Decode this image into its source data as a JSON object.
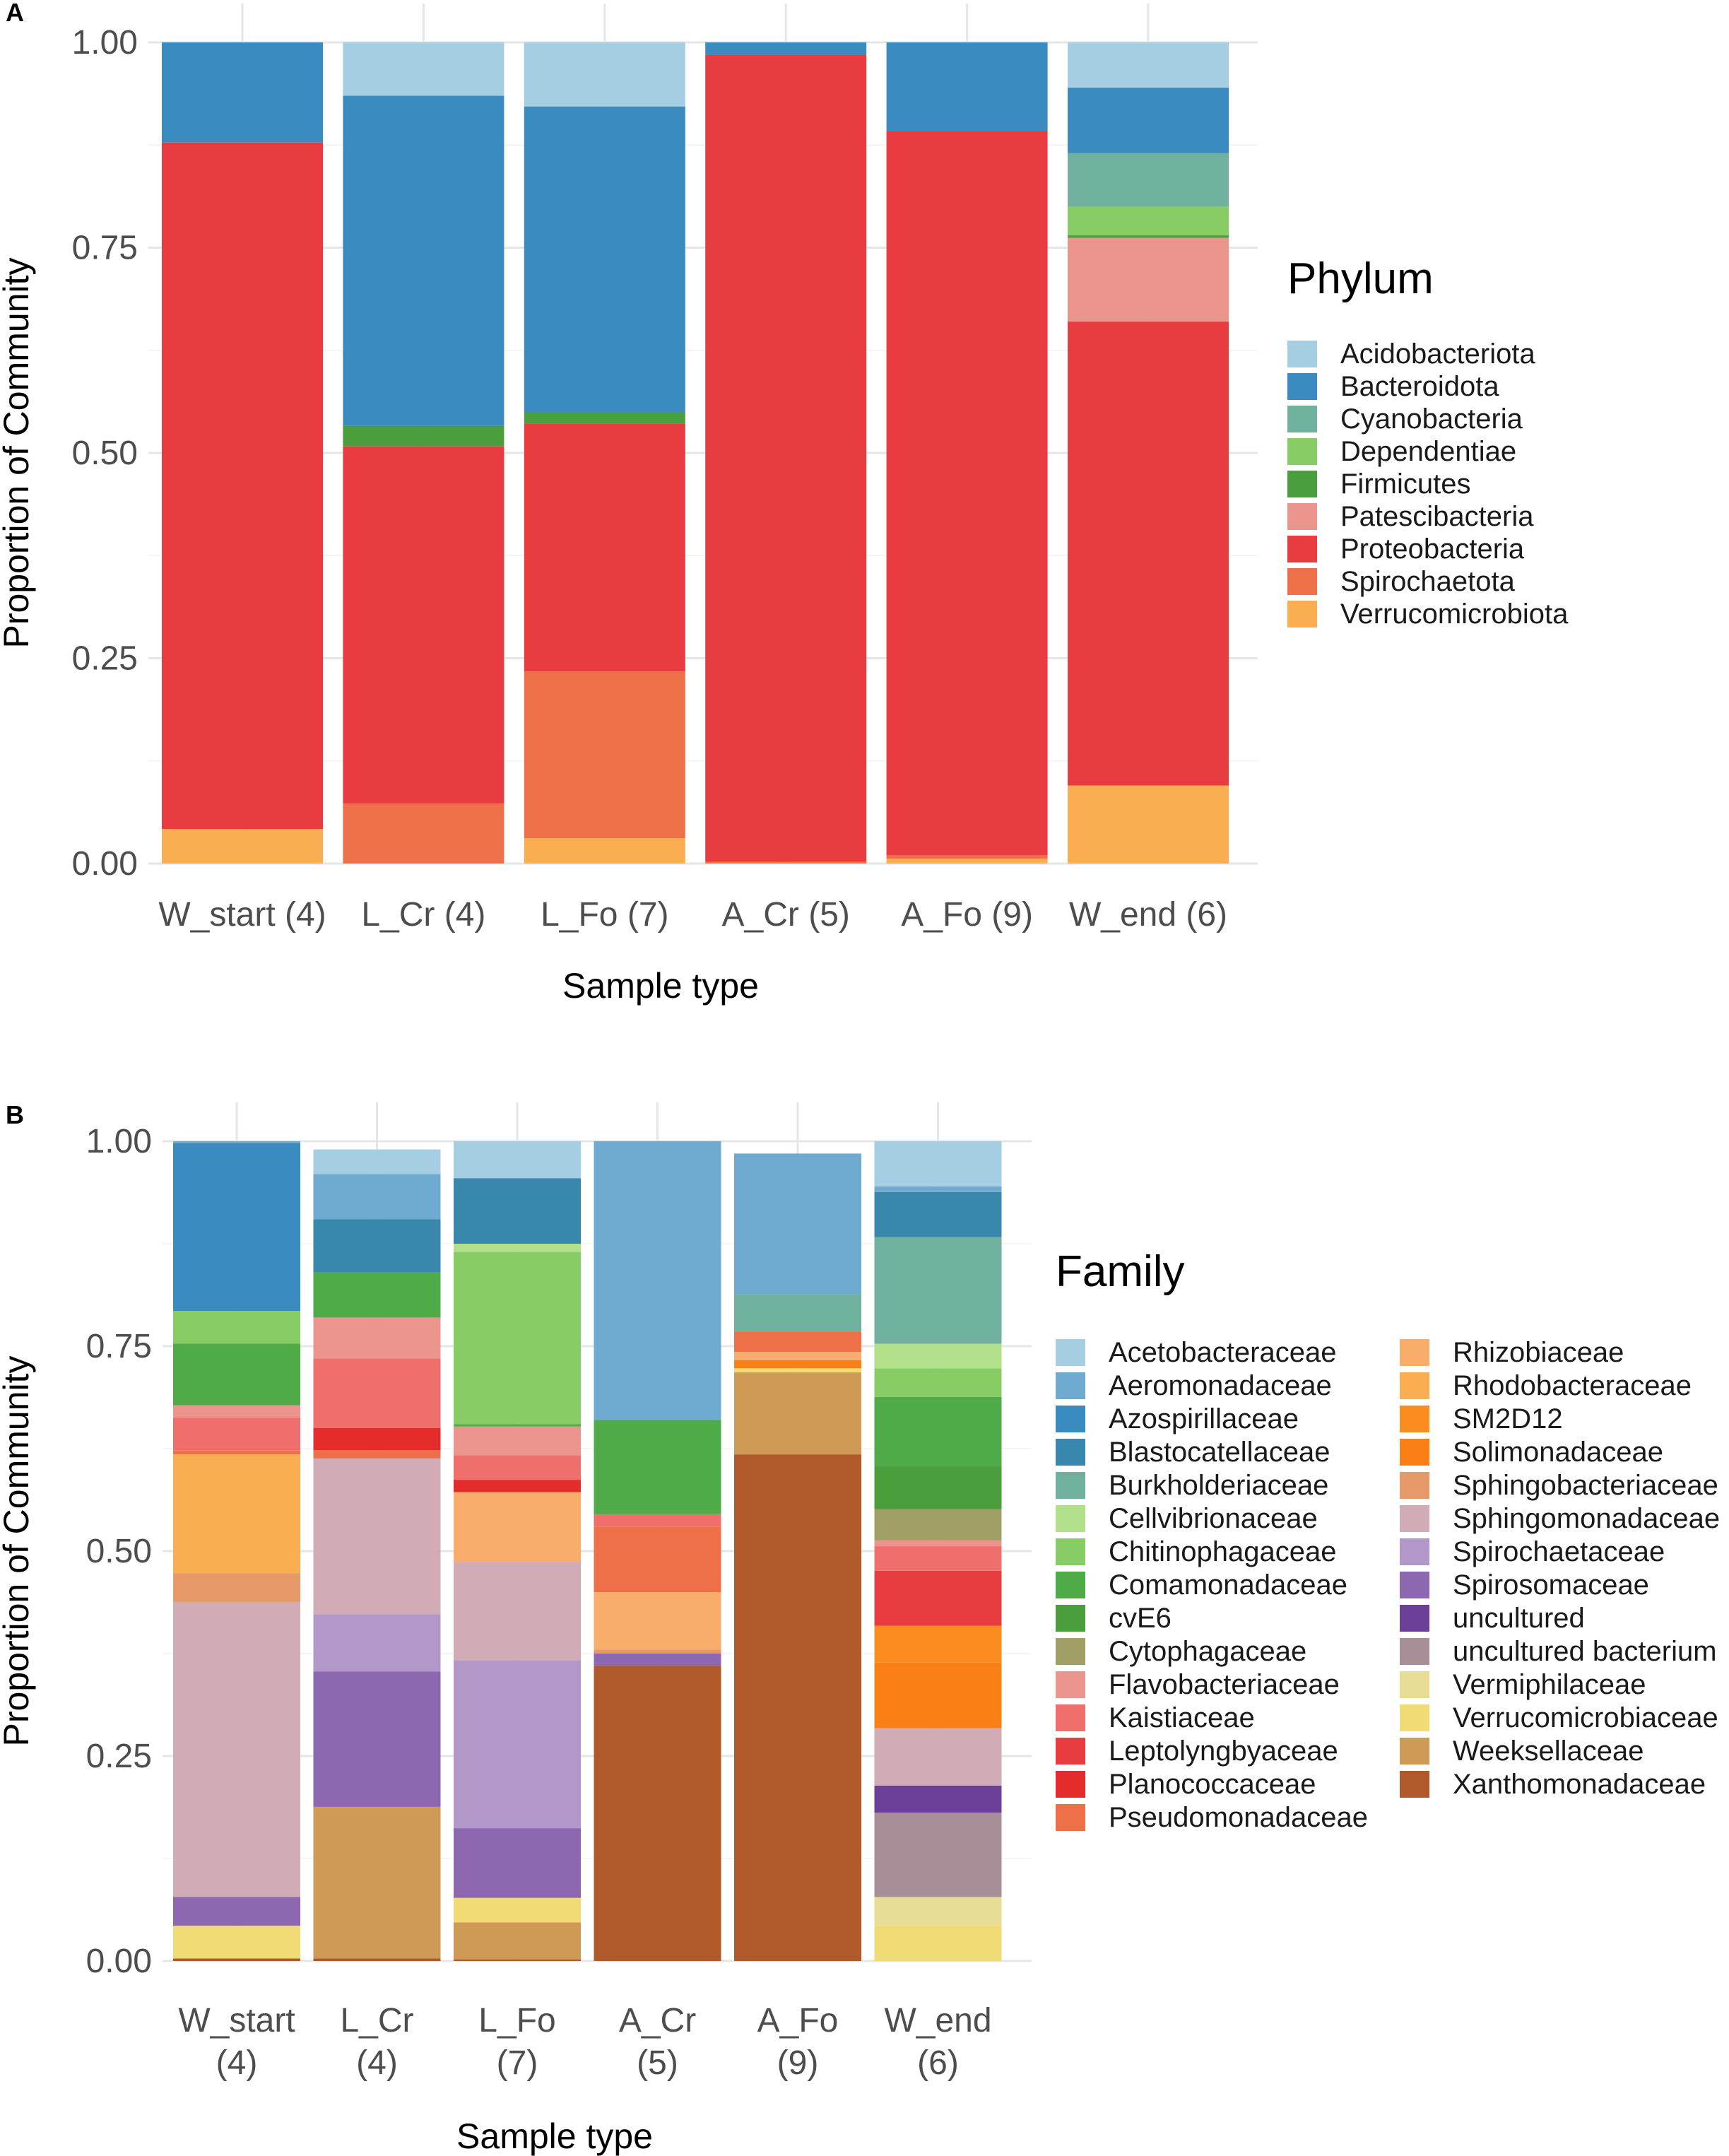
{
  "chart_data": [
    {
      "panel_tag": "A",
      "type": "bar",
      "stacked": true,
      "title": "",
      "xlabel": "Sample type",
      "ylabel": "Proportion of Community",
      "ylim": [
        0,
        1
      ],
      "yticks": [
        "0.00",
        "0.25",
        "0.50",
        "0.75",
        "1.00"
      ],
      "categories": [
        "W_start (4)",
        "L_Cr (4)",
        "L_Fo (7)",
        "A_Cr (5)",
        "A_Fo (9)",
        "W_end (6)"
      ],
      "legend_title": "Phylum",
      "legend_position": "right",
      "series": [
        {
          "name": "Acidobacteriota",
          "color": "#a6cee3",
          "values": [
            0,
            0.065,
            0.078,
            0,
            0,
            0.055
          ]
        },
        {
          "name": "Bacteroidota",
          "color": "#3a8bbf",
          "values": [
            0.122,
            0.402,
            0.373,
            0.015,
            0.108,
            0.08
          ]
        },
        {
          "name": "Cyanobacteria",
          "color": "#6fb19e",
          "values": [
            0,
            0,
            0,
            0,
            0,
            0.065
          ]
        },
        {
          "name": "Dependentiae",
          "color": "#88cc66",
          "values": [
            0,
            0,
            0,
            0,
            0,
            0.035
          ]
        },
        {
          "name": "Firmicutes",
          "color": "#4a9e3c",
          "values": [
            0,
            0.025,
            0.013,
            0,
            0,
            0.003
          ]
        },
        {
          "name": "Patescibacteria",
          "color": "#ec958e",
          "values": [
            0,
            0,
            0,
            0,
            0,
            0.102
          ]
        },
        {
          "name": "Proteobacteria",
          "color": "#e83c40",
          "values": [
            0.836,
            0.435,
            0.302,
            0.983,
            0.882,
            0.565
          ]
        },
        {
          "name": "Spirochaetota",
          "color": "#ee7048",
          "values": [
            0,
            0.073,
            0.203,
            0.002,
            0.004,
            0
          ]
        },
        {
          "name": "Verrucomicrobiota",
          "color": "#fbad52",
          "values": [
            0.042,
            0,
            0.031,
            0,
            0.006,
            0.095
          ]
        }
      ]
    },
    {
      "panel_tag": "B",
      "type": "bar",
      "stacked": true,
      "title": "",
      "xlabel": "Sample type",
      "ylabel": "Proportion of Community",
      "ylim": [
        0,
        1
      ],
      "yticks": [
        "0.00",
        "0.25",
        "0.50",
        "0.75",
        "1.00"
      ],
      "categories": [
        "W_start\n(4)",
        "L_Cr\n(4)",
        "L_Fo\n(7)",
        "A_Cr\n(5)",
        "A_Fo\n(9)",
        "W_end\n(6)"
      ],
      "legend_title": "Family",
      "legend_position": "right",
      "series": [
        {
          "name": "Acetobacteraceae",
          "color": "#a6cee3",
          "values": [
            0,
            0.03,
            0.045,
            0,
            0,
            0.055
          ]
        },
        {
          "name": "Aeromonadaceae",
          "color": "#6fabd0",
          "values": [
            0.002,
            0.055,
            0,
            0.34,
            0.172,
            0.007
          ]
        },
        {
          "name": "Azospirillaceae",
          "color": "#3a8bbf",
          "values": [
            0.205,
            0,
            0,
            0,
            0,
            0
          ]
        },
        {
          "name": "Blastocatellaceae",
          "color": "#3987ad",
          "values": [
            0,
            0.065,
            0.08,
            0,
            0,
            0.055
          ]
        },
        {
          "name": "Burkholderiaceae",
          "color": "#6fb19e",
          "values": [
            0,
            0,
            0,
            0,
            0.045,
            0.13
          ]
        },
        {
          "name": "Cellvibrionaceae",
          "color": "#b2df8a",
          "values": [
            0,
            0,
            0.01,
            0,
            0,
            0.03
          ]
        },
        {
          "name": "Chitinophagaceae",
          "color": "#88cc66",
          "values": [
            0.04,
            0,
            0.21,
            0,
            0,
            0.035
          ]
        },
        {
          "name": "Comamonadaceae",
          "color": "#4fab48",
          "values": [
            0.075,
            0.055,
            0.003,
            0.115,
            0,
            0.085
          ]
        },
        {
          "name": "cvE6",
          "color": "#4a9e3c",
          "values": [
            0,
            0,
            0,
            0,
            0,
            0.052
          ]
        },
        {
          "name": "Cytophagaceae",
          "color": "#a0a066",
          "values": [
            0,
            0,
            0,
            0,
            0,
            0.038
          ]
        },
        {
          "name": "Flavobacteriaceae",
          "color": "#ec958e",
          "values": [
            0.015,
            0.05,
            0.035,
            0,
            0,
            0.007
          ]
        },
        {
          "name": "Kaistiaceae",
          "color": "#ef6f6c",
          "values": [
            0.04,
            0.085,
            0.03,
            0.015,
            0,
            0.03
          ]
        },
        {
          "name": "Leptolyngbyaceae",
          "color": "#e83c40",
          "values": [
            0,
            0,
            0,
            0,
            0,
            0.067
          ]
        },
        {
          "name": "Planococcaceae",
          "color": "#e42c2c",
          "values": [
            0,
            0.027,
            0.015,
            0,
            0,
            0
          ]
        },
        {
          "name": "Pseudomonadaceae",
          "color": "#ee7048",
          "values": [
            0.005,
            0.01,
            0,
            0.08,
            0.025,
            0
          ]
        },
        {
          "name": "Rhizobiaceae",
          "color": "#f8ad6a",
          "values": [
            0,
            0,
            0.085,
            0.07,
            0.01,
            0
          ]
        },
        {
          "name": "Rhodobacteraceae",
          "color": "#fbad52",
          "values": [
            0.145,
            0,
            0,
            0,
            0,
            0
          ]
        },
        {
          "name": "SM2D12",
          "color": "#fb8c20",
          "values": [
            0,
            0,
            0,
            0,
            0,
            0.045
          ]
        },
        {
          "name": "Solimonadaceae",
          "color": "#fa7f14",
          "values": [
            0,
            0,
            0,
            0,
            0.01,
            0.08
          ]
        },
        {
          "name": "Sphingobacteriaceae",
          "color": "#e59868",
          "values": [
            0.035,
            0,
            0,
            0.005,
            0,
            0
          ]
        },
        {
          "name": "Sphingomonadaceae",
          "color": "#d1abb6",
          "values": [
            0.36,
            0.19,
            0.12,
            0,
            0,
            0.07
          ]
        },
        {
          "name": "Spirochaetaceae",
          "color": "#b298c9",
          "values": [
            0,
            0.07,
            0.205,
            0,
            0,
            0
          ]
        },
        {
          "name": "Spirosomaceae",
          "color": "#8e67b1",
          "values": [
            0.035,
            0.165,
            0.085,
            0.015,
            0,
            0
          ]
        },
        {
          "name": "uncultured",
          "color": "#6c3f98",
          "values": [
            0,
            0,
            0,
            0,
            0,
            0.033
          ]
        },
        {
          "name": "uncultured bacterium",
          "color": "#a88e96",
          "values": [
            0,
            0,
            0,
            0,
            0,
            0.103
          ]
        },
        {
          "name": "Vermiphilaceae",
          "color": "#e8dd96",
          "values": [
            0,
            0,
            0,
            0,
            0,
            0.035
          ]
        },
        {
          "name": "Verrucomicrobiaceae",
          "color": "#f0db74",
          "values": [
            0.04,
            0,
            0.03,
            0,
            0.005,
            0.043
          ]
        },
        {
          "name": "Weeksellaceae",
          "color": "#cf9a55",
          "values": [
            0,
            0.185,
            0.045,
            0,
            0.1,
            0
          ]
        },
        {
          "name": "Xanthomonadaceae",
          "color": "#b05a2c",
          "values": [
            0.003,
            0.003,
            0.002,
            0.36,
            0.618,
            0
          ]
        }
      ]
    }
  ]
}
